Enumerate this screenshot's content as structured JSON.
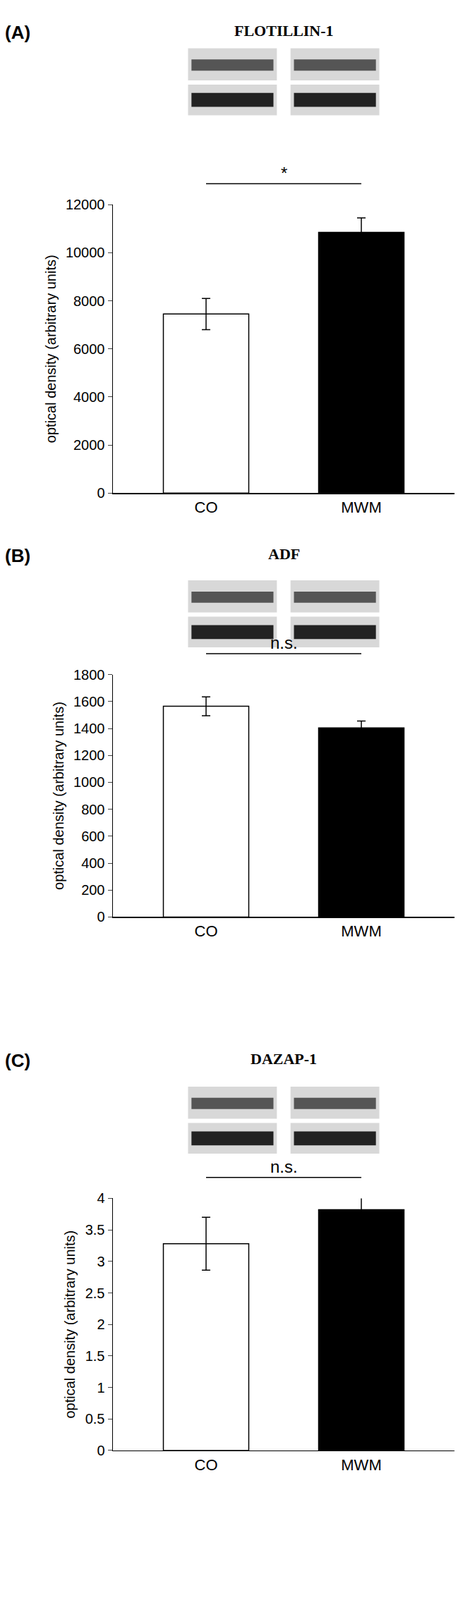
{
  "chart_data": [
    {
      "type": "bar",
      "panel": "(A)",
      "title": "FLOTILLIN-1",
      "categories": [
        "CO",
        "MWM"
      ],
      "values": [
        7450,
        10850
      ],
      "errors": [
        650,
        600
      ],
      "colors": [
        "#ffffff",
        "#000000"
      ],
      "y_label": "optical density (arbitrary units)",
      "ylim": [
        0,
        12000
      ],
      "yticks": [
        0,
        2000,
        4000,
        6000,
        8000,
        10000,
        12000
      ],
      "grid": false,
      "annotation": "*"
    },
    {
      "type": "bar",
      "panel": "(B)",
      "title": "ADF",
      "categories": [
        "CO",
        "MWM"
      ],
      "values": [
        1565,
        1405
      ],
      "errors": [
        70,
        50
      ],
      "colors": [
        "#ffffff",
        "#000000"
      ],
      "y_label": "optical density (arbitrary units)",
      "ylim": [
        0,
        1800
      ],
      "yticks": [
        0,
        200,
        400,
        600,
        800,
        1000,
        1200,
        1400,
        1600,
        1800
      ],
      "grid": false,
      "annotation": "n.s."
    },
    {
      "type": "bar",
      "panel": "(C)",
      "title": "DAZAP-1",
      "categories": [
        "CO",
        "MWM"
      ],
      "values": [
        3.28,
        3.82
      ],
      "errors": [
        0.42,
        0.25
      ],
      "colors": [
        "#ffffff",
        "#000000"
      ],
      "y_label": "optical density (arbitrary units)",
      "ylim": [
        0,
        4
      ],
      "yticks": [
        0,
        0.5,
        1,
        1.5,
        2,
        2.5,
        3,
        3.5,
        4
      ],
      "grid": false,
      "annotation": "n.s."
    }
  ]
}
